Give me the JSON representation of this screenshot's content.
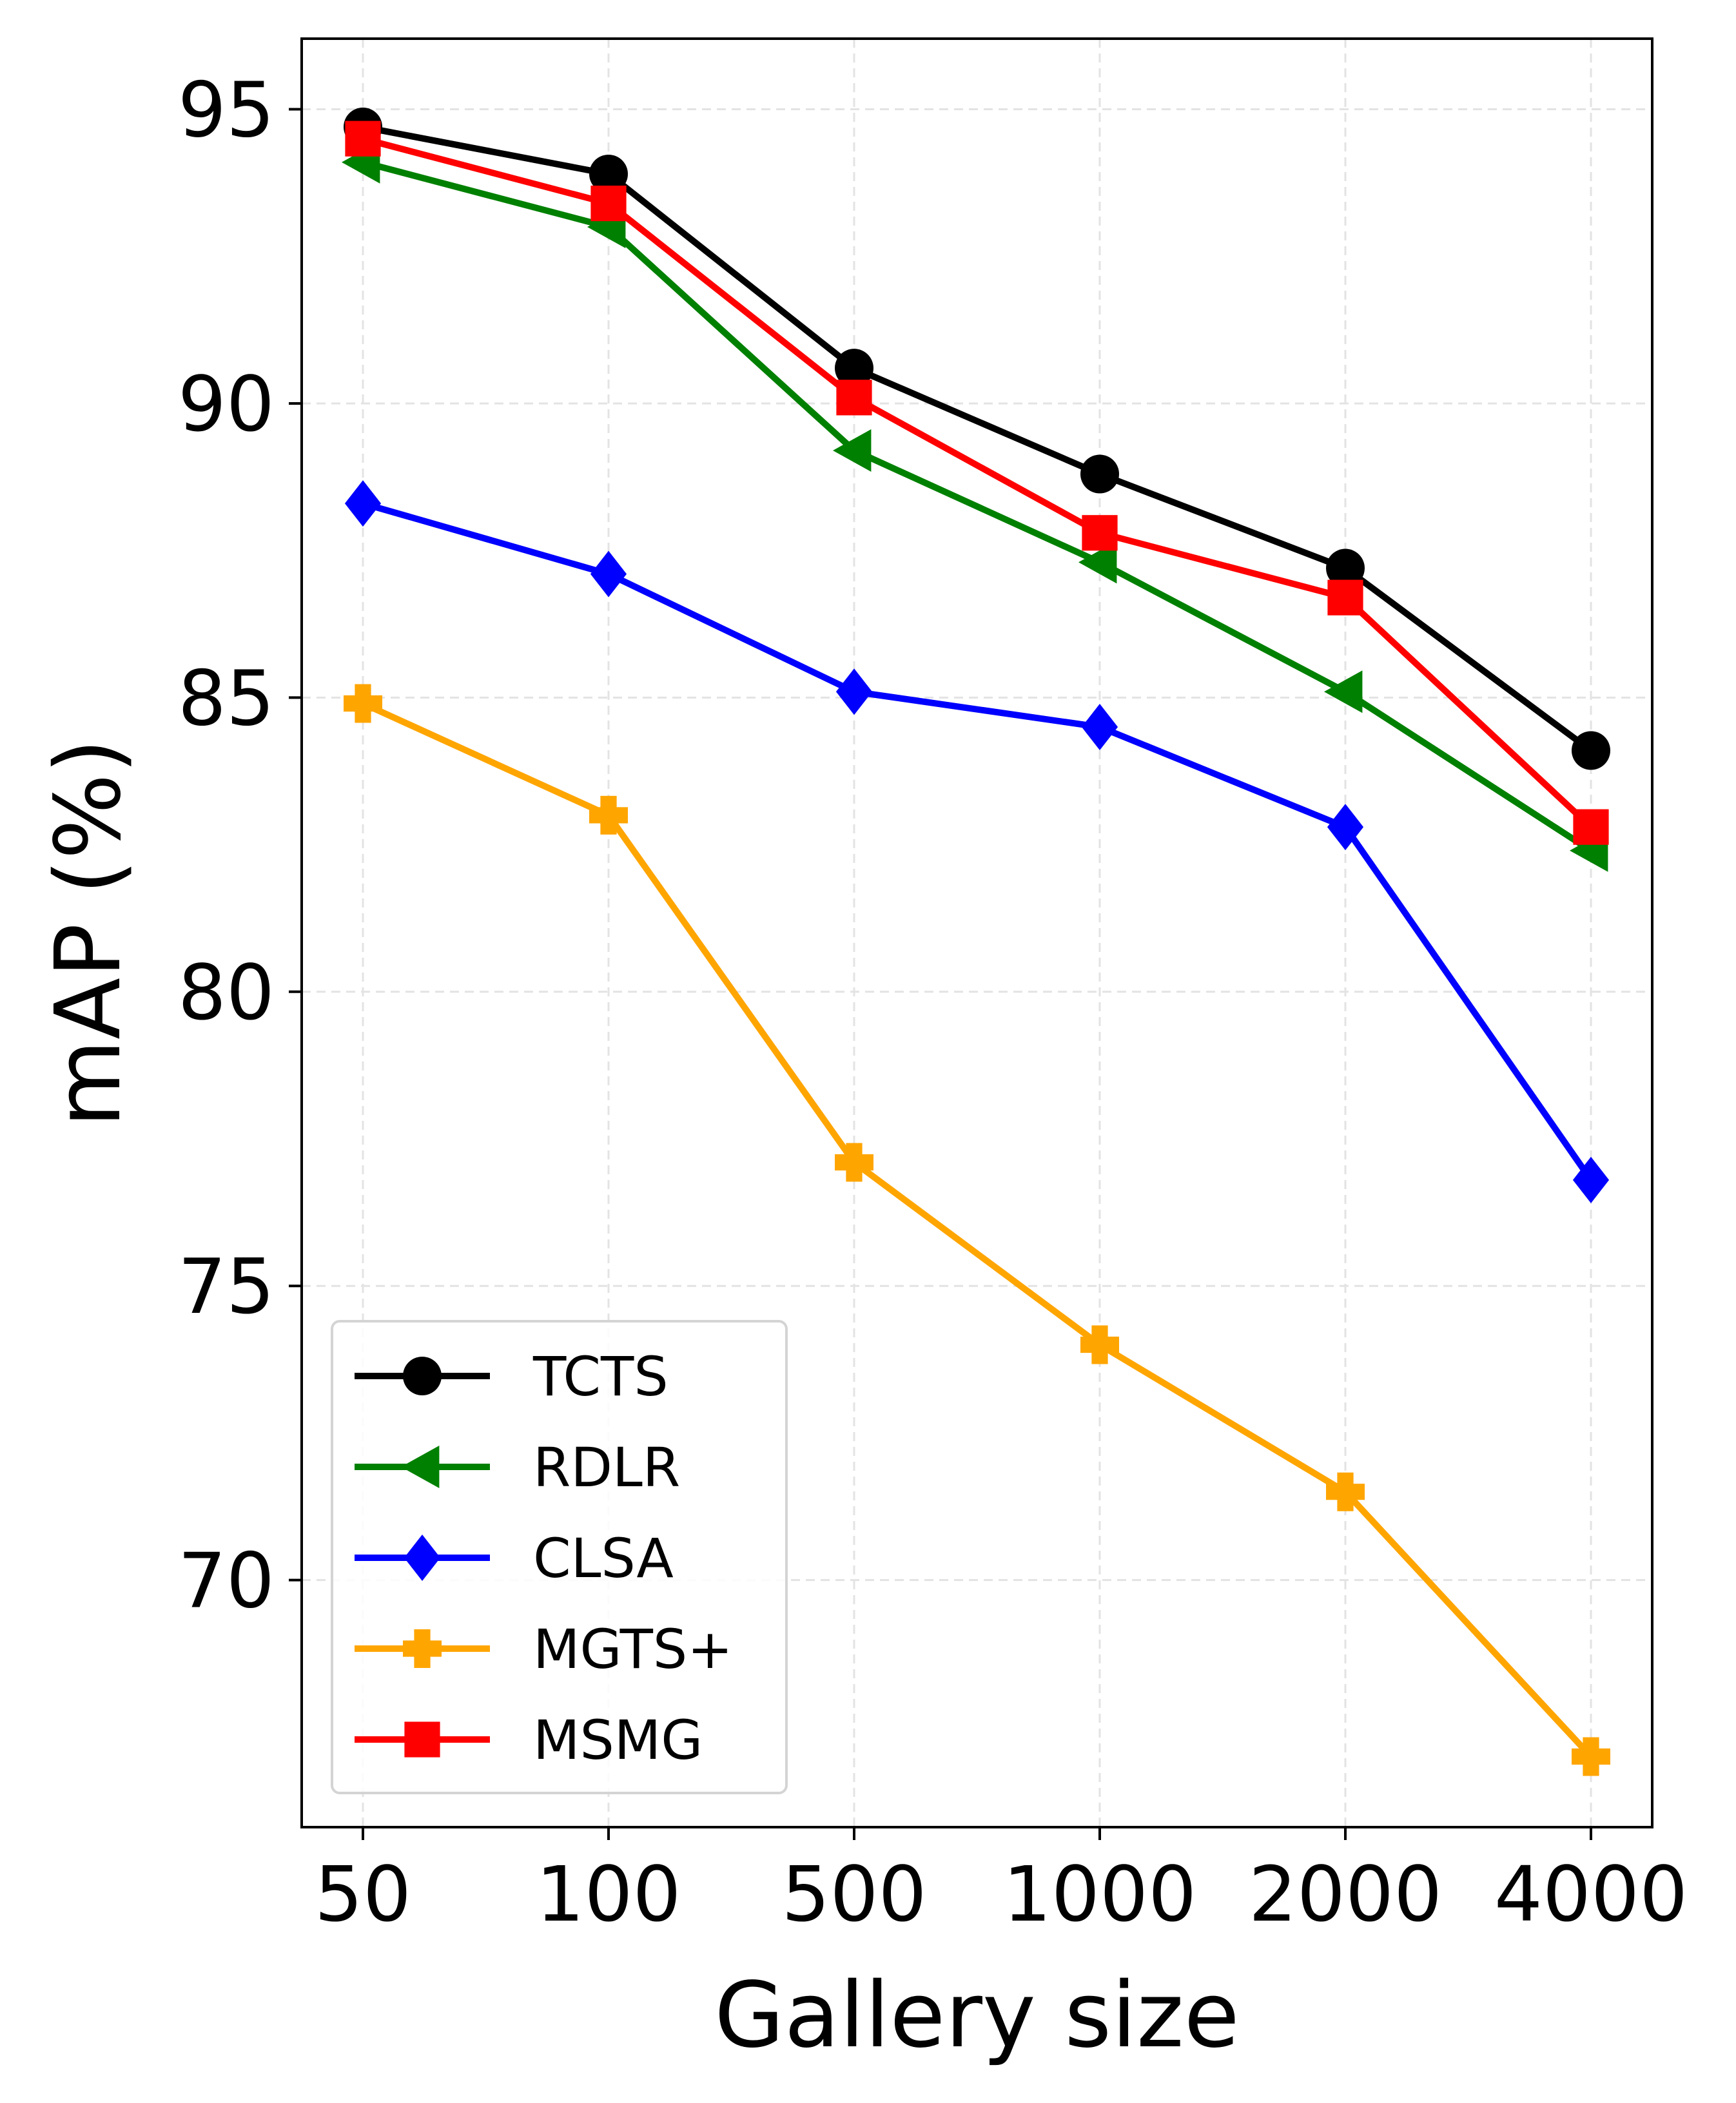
{
  "chart_data": {
    "type": "line",
    "title": "",
    "xlabel": "Gallery size",
    "ylabel": "mAP (%)",
    "categories": [
      "50",
      "100",
      "500",
      "1000",
      "2000",
      "4000"
    ],
    "ylim": [
      65.8,
      96.2
    ],
    "yticks": [
      "70",
      "75",
      "80",
      "85",
      "90",
      "95"
    ],
    "grid": true,
    "legend_position": "lower-left",
    "series": [
      {
        "name": "TCTS",
        "color": "#000000",
        "marker": "circle",
        "values": [
          94.7,
          93.9,
          90.6,
          88.8,
          87.2,
          84.1
        ]
      },
      {
        "name": "RDLR",
        "color": "#008000",
        "marker": "triangle-left",
        "values": [
          94.1,
          93.0,
          89.2,
          87.3,
          85.1,
          82.4
        ]
      },
      {
        "name": "CLSA",
        "color": "#0000ff",
        "marker": "diamond",
        "values": [
          88.3,
          87.1,
          85.1,
          84.5,
          82.8,
          76.8
        ]
      },
      {
        "name": "MGTS+",
        "color": "#ffa500",
        "marker": "plus-filled",
        "values": [
          84.9,
          83.0,
          77.1,
          74.0,
          71.5,
          67.0
        ]
      },
      {
        "name": "MSMG",
        "color": "#ff0000",
        "marker": "square",
        "values": [
          94.5,
          93.4,
          90.1,
          87.8,
          86.7,
          82.8
        ]
      }
    ]
  }
}
